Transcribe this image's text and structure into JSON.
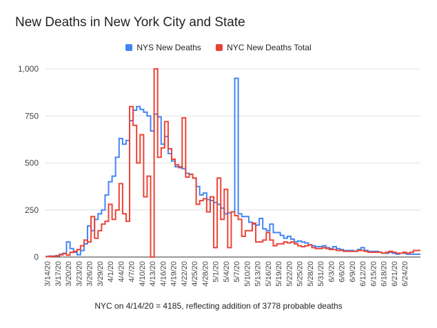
{
  "chart_data": {
    "type": "line",
    "title": "New Deaths in New York City and State",
    "footnote": "NYC on 4/14/20 = 4185, reflecting addition of 3778 probable deaths",
    "xlabel": "",
    "ylabel": "",
    "ylim": [
      0,
      1000
    ],
    "yticks": [
      0,
      250,
      500,
      750,
      1000
    ],
    "ytick_labels": [
      "0",
      "250",
      "500",
      "750",
      "1,000"
    ],
    "grid": true,
    "legend_position": "top-center",
    "step": true,
    "xtick_labels": [
      "3/14/20",
      "3/17/20",
      "3/20/20",
      "3/23/20",
      "3/26/20",
      "3/29/20",
      "4/1/20",
      "4/4/20",
      "4/7/20",
      "4/10/20",
      "4/13/20",
      "4/16/20",
      "4/19/20",
      "4/22/20",
      "4/25/20",
      "4/28/20",
      "5/1/20",
      "5/4/20",
      "5/7/20",
      "5/10/20",
      "5/13/20",
      "5/16/20",
      "5/19/20",
      "5/22/20",
      "5/25/20",
      "5/28/20",
      "5/31/20",
      "6/3/20",
      "6/6/20",
      "6/9/20",
      "6/12/20",
      "6/15/20",
      "6/18/20",
      "6/21/20",
      "6/24/20"
    ],
    "x": [
      "3/14/20",
      "3/15/20",
      "3/16/20",
      "3/17/20",
      "3/18/20",
      "3/19/20",
      "3/20/20",
      "3/21/20",
      "3/22/20",
      "3/23/20",
      "3/24/20",
      "3/25/20",
      "3/26/20",
      "3/27/20",
      "3/28/20",
      "3/29/20",
      "3/30/20",
      "3/31/20",
      "4/1/20",
      "4/2/20",
      "4/3/20",
      "4/4/20",
      "4/5/20",
      "4/6/20",
      "4/7/20",
      "4/8/20",
      "4/9/20",
      "4/10/20",
      "4/11/20",
      "4/12/20",
      "4/13/20",
      "4/14/20",
      "4/15/20",
      "4/16/20",
      "4/17/20",
      "4/18/20",
      "4/19/20",
      "4/20/20",
      "4/21/20",
      "4/22/20",
      "4/23/20",
      "4/24/20",
      "4/25/20",
      "4/26/20",
      "4/27/20",
      "4/28/20",
      "4/29/20",
      "4/30/20",
      "5/1/20",
      "5/2/20",
      "5/3/20",
      "5/4/20",
      "5/5/20",
      "5/6/20",
      "5/7/20",
      "5/8/20",
      "5/9/20",
      "5/10/20",
      "5/11/20",
      "5/12/20",
      "5/13/20",
      "5/14/20",
      "5/15/20",
      "5/16/20",
      "5/17/20",
      "5/18/20",
      "5/19/20",
      "5/20/20",
      "5/21/20",
      "5/22/20",
      "5/23/20",
      "5/24/20",
      "5/25/20",
      "5/26/20",
      "5/27/20",
      "5/28/20",
      "5/29/20",
      "5/30/20",
      "5/31/20",
      "6/1/20",
      "6/2/20",
      "6/3/20",
      "6/4/20",
      "6/5/20",
      "6/6/20",
      "6/7/20",
      "6/8/20",
      "6/9/20",
      "6/10/20",
      "6/11/20",
      "6/12/20",
      "6/13/20",
      "6/14/20",
      "6/15/20",
      "6/16/20",
      "6/17/20",
      "6/18/20",
      "6/19/20",
      "6/20/20",
      "6/21/20",
      "6/22/20",
      "6/23/20",
      "6/24/20",
      "6/25/20",
      "6/26/20",
      "6/27/20",
      "6/28/20"
    ],
    "series": [
      {
        "name": "NYS New Deaths",
        "color": "#4285f4",
        "values": [
          3,
          5,
          5,
          8,
          15,
          20,
          80,
          45,
          25,
          12,
          35,
          70,
          165,
          140,
          200,
          230,
          250,
          330,
          400,
          430,
          530,
          630,
          600,
          620,
          725,
          780,
          800,
          785,
          770,
          750,
          670,
          760,
          745,
          600,
          640,
          550,
          510,
          480,
          480,
          470,
          445,
          440,
          420,
          375,
          330,
          340,
          305,
          300,
          290,
          280,
          260,
          230,
          235,
          240,
          950,
          230,
          215,
          215,
          185,
          175,
          170,
          205,
          150,
          140,
          175,
          130,
          130,
          115,
          100,
          110,
          95,
          80,
          85,
          80,
          75,
          65,
          60,
          55,
          55,
          60,
          50,
          45,
          55,
          45,
          40,
          35,
          35,
          35,
          30,
          40,
          50,
          35,
          30,
          30,
          30,
          25,
          20,
          20,
          25,
          20,
          15,
          20,
          20,
          15,
          15,
          15,
          15
        ]
      },
      {
        "name": "NYC New Deaths Total",
        "color": "#ea4335",
        "values": [
          2,
          3,
          4,
          6,
          12,
          18,
          10,
          25,
          30,
          40,
          60,
          90,
          80,
          215,
          100,
          140,
          175,
          190,
          280,
          200,
          250,
          390,
          230,
          190,
          800,
          700,
          500,
          650,
          320,
          430,
          0,
          1000,
          530,
          580,
          720,
          575,
          520,
          490,
          475,
          740,
          425,
          440,
          420,
          280,
          300,
          310,
          240,
          320,
          50,
          420,
          200,
          360,
          50,
          240,
          220,
          200,
          110,
          140,
          140,
          180,
          80,
          80,
          90,
          130,
          90,
          60,
          70,
          70,
          80,
          75,
          80,
          70,
          60,
          55,
          60,
          65,
          50,
          45,
          45,
          50,
          45,
          40,
          40,
          35,
          35,
          30,
          30,
          30,
          30,
          35,
          35,
          30,
          25,
          25,
          25,
          25,
          20,
          25,
          30,
          25,
          20,
          20,
          25,
          20,
          25,
          35,
          35
        ]
      }
    ]
  }
}
